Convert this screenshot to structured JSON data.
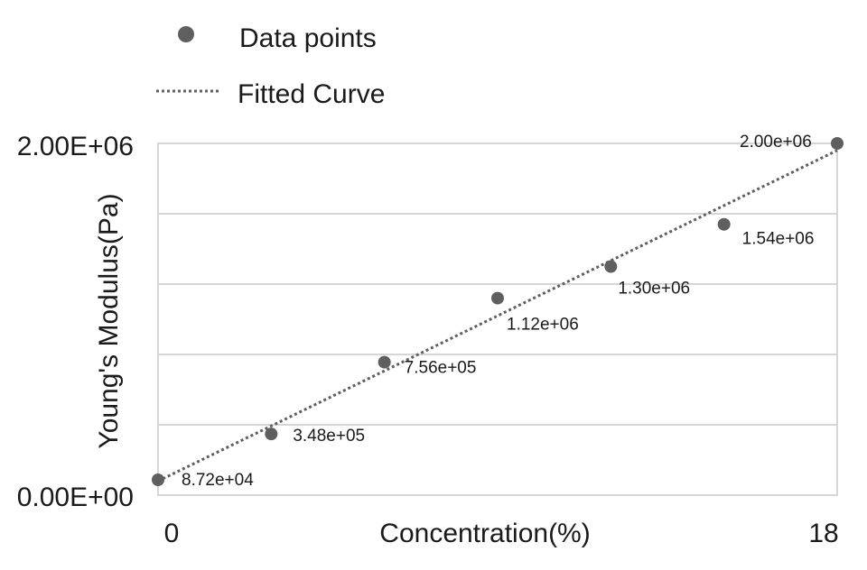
{
  "chart_data": {
    "type": "scatter",
    "xlabel": "Concentration(%)",
    "ylabel": "Young's Modulus(Pa)",
    "x_ticks": [
      "0",
      "18"
    ],
    "y_ticks": [
      "0.00E+00",
      "2.00E+06"
    ],
    "xlim": [
      0,
      18
    ],
    "ylim": [
      0,
      2000000
    ],
    "grid": true,
    "legend_position": "top-left",
    "series": [
      {
        "name": "Data points",
        "x": [
          0,
          3,
          6,
          9,
          12,
          15,
          18
        ],
        "y": [
          87200,
          348000,
          756000,
          1120000,
          1300000,
          1540000,
          2000000
        ],
        "labels": [
          "8.72e+04",
          "3.48e+05",
          "7.56e+05",
          "1.12e+06",
          "1.30e+06",
          "1.54e+06",
          "2.00e+06"
        ]
      },
      {
        "name": "Fitted Curve",
        "x": [
          0,
          18
        ],
        "y": [
          80000,
          1960000
        ]
      }
    ],
    "colors": {
      "points": "#5f5f5f",
      "trend": "#5f5f5f",
      "grid": "#d6d6d6"
    }
  }
}
